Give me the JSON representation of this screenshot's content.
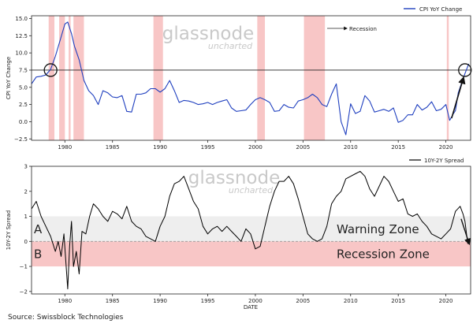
{
  "source": "Source: Swissblock Technologies",
  "chart_data": [
    {
      "type": "line",
      "title": "",
      "xlabel": "",
      "ylabel": "CPI YoY Change",
      "xlim": [
        1976.5,
        2022.6
      ],
      "ylim": [
        -2.7,
        15.4
      ],
      "xticks": [
        1980,
        1985,
        1990,
        1995,
        2000,
        2005,
        2010,
        2015,
        2020
      ],
      "yticks": [
        -2.5,
        0.0,
        2.5,
        5.0,
        7.5,
        10.0,
        12.5,
        15.0
      ],
      "ytick_labels": [
        "−2.5",
        "0.0",
        "2.5",
        "5.0",
        "7.5",
        "10.0",
        "12.5",
        "15.0"
      ],
      "legend_position": "top-right",
      "legend_label": "CPI YoY Change",
      "line_color": "#1f3fbf",
      "recession_color": "#f8c6c6",
      "recession_label": "Recession",
      "hline": 7.5,
      "watermark": {
        "main": "glassnode",
        "sub": "uncharted"
      },
      "recessions": [
        [
          1978.3,
          1978.9
        ],
        [
          1979.4,
          1980.0
        ],
        [
          1980.4,
          1980.6
        ],
        [
          1980.9,
          1982.0
        ],
        [
          1989.3,
          1990.3
        ],
        [
          2000.2,
          2001.0
        ],
        [
          2005.1,
          2007.3
        ],
        [
          2020.1,
          2020.3
        ]
      ],
      "series": [
        {
          "x": [
            1976.5,
            1977.0,
            1977.5,
            1978.0,
            1978.5,
            1979.0,
            1979.5,
            1980.0,
            1980.3,
            1980.7,
            1981.0,
            1981.5,
            1982.0,
            1982.5,
            1983.0,
            1983.5,
            1984.0,
            1984.5,
            1985.0,
            1985.5,
            1986.0,
            1986.5,
            1987.0,
            1987.5,
            1988.0,
            1988.5,
            1989.0,
            1989.5,
            1990.0,
            1990.5,
            1991.0,
            1991.5,
            1992.0,
            1992.5,
            1993.0,
            1993.5,
            1994.0,
            1994.5,
            1995.0,
            1995.5,
            1996.0,
            1996.5,
            1997.0,
            1997.5,
            1998.0,
            1998.5,
            1999.0,
            1999.5,
            2000.0,
            2000.5,
            2001.0,
            2001.5,
            2002.0,
            2002.5,
            2003.0,
            2003.5,
            2004.0,
            2004.5,
            2005.0,
            2005.5,
            2006.0,
            2006.5,
            2007.0,
            2007.5,
            2008.0,
            2008.5,
            2009.0,
            2009.5,
            2010.0,
            2010.5,
            2011.0,
            2011.5,
            2012.0,
            2012.5,
            2013.0,
            2013.5,
            2014.0,
            2014.5,
            2015.0,
            2015.5,
            2016.0,
            2016.5,
            2017.0,
            2017.5,
            2018.0,
            2018.5,
            2019.0,
            2019.5,
            2020.0,
            2020.4,
            2020.8,
            2021.0,
            2021.3,
            2021.6,
            2022.0,
            2022.4
          ],
          "y": [
            5.5,
            6.5,
            6.6,
            6.8,
            7.6,
            9.5,
            11.8,
            14.2,
            14.5,
            12.8,
            11.0,
            9.0,
            6.0,
            4.5,
            3.8,
            2.5,
            4.5,
            4.2,
            3.6,
            3.5,
            3.8,
            1.5,
            1.4,
            4.0,
            4.0,
            4.2,
            4.8,
            4.8,
            4.3,
            4.8,
            6.0,
            4.5,
            2.8,
            3.1,
            3.0,
            2.8,
            2.5,
            2.6,
            2.8,
            2.5,
            2.8,
            3.0,
            3.2,
            2.0,
            1.5,
            1.6,
            1.7,
            2.5,
            3.2,
            3.5,
            3.2,
            2.8,
            1.5,
            1.6,
            2.5,
            2.1,
            2.0,
            3.0,
            3.2,
            3.5,
            4.0,
            3.5,
            2.5,
            2.2,
            4.0,
            5.5,
            0.0,
            -1.9,
            2.6,
            1.2,
            1.5,
            3.8,
            3.0,
            1.4,
            1.6,
            1.8,
            1.5,
            2.0,
            -0.1,
            0.2,
            1.0,
            1.0,
            2.5,
            1.7,
            2.1,
            2.9,
            1.6,
            1.8,
            2.5,
            0.2,
            1.2,
            1.6,
            4.2,
            5.4,
            7.0,
            8.4
          ]
        }
      ]
    },
    {
      "type": "line",
      "title": "",
      "xlabel": "DATE",
      "ylabel": "10Y-2Y Spread",
      "xlim": [
        1976.5,
        2022.6
      ],
      "ylim": [
        -2.1,
        3.0
      ],
      "xticks": [
        1980,
        1985,
        1990,
        1995,
        2000,
        2005,
        2010,
        2015,
        2020
      ],
      "yticks": [
        -2,
        -1,
        0,
        1,
        2,
        3
      ],
      "ytick_labels": [
        "−2",
        "−1",
        "0",
        "1",
        "2",
        "3"
      ],
      "legend_position": "top-right",
      "legend_label": "10Y-2Y Spread",
      "line_color": "#000000",
      "watermark": {
        "main": "glassnode",
        "sub": "uncharted"
      },
      "zones": [
        {
          "label": "Warning Zone",
          "letter": "A",
          "from": 0,
          "to": 1,
          "color": "#eeeeee"
        },
        {
          "label": "Recession Zone",
          "letter": "B",
          "from": -1,
          "to": 0,
          "color": "#f8c6c6"
        }
      ],
      "series": [
        {
          "x": [
            1976.5,
            1977.0,
            1977.5,
            1978.0,
            1978.5,
            1979.0,
            1979.3,
            1979.6,
            1979.9,
            1980.1,
            1980.3,
            1980.5,
            1980.7,
            1980.9,
            1981.2,
            1981.5,
            1981.8,
            1982.2,
            1982.6,
            1983.0,
            1983.5,
            1984.0,
            1984.5,
            1985.0,
            1985.5,
            1986.0,
            1986.5,
            1987.0,
            1987.5,
            1988.0,
            1988.5,
            1989.0,
            1989.5,
            1990.0,
            1990.5,
            1991.0,
            1991.5,
            1992.0,
            1992.5,
            1993.0,
            1993.5,
            1994.0,
            1994.5,
            1995.0,
            1995.5,
            1996.0,
            1996.5,
            1997.0,
            1997.5,
            1998.0,
            1998.5,
            1999.0,
            1999.5,
            2000.0,
            2000.5,
            2001.0,
            2001.5,
            2002.0,
            2002.5,
            2003.0,
            2003.5,
            2004.0,
            2004.5,
            2005.0,
            2005.5,
            2006.0,
            2006.5,
            2007.0,
            2007.5,
            2008.0,
            2008.5,
            2009.0,
            2009.5,
            2010.0,
            2010.5,
            2011.0,
            2011.5,
            2012.0,
            2012.5,
            2013.0,
            2013.5,
            2014.0,
            2014.5,
            2015.0,
            2015.5,
            2016.0,
            2016.5,
            2017.0,
            2017.5,
            2018.0,
            2018.5,
            2019.0,
            2019.5,
            2020.0,
            2020.5,
            2021.0,
            2021.5,
            2021.8,
            2022.0,
            2022.3
          ],
          "y": [
            1.3,
            1.6,
            1.0,
            0.6,
            0.2,
            -0.4,
            0.0,
            -0.6,
            0.3,
            -0.8,
            -1.9,
            -0.2,
            0.8,
            -1.0,
            -0.4,
            -1.3,
            0.4,
            0.3,
            1.0,
            1.5,
            1.3,
            1.0,
            0.8,
            1.2,
            1.1,
            0.9,
            1.4,
            0.8,
            0.6,
            0.5,
            0.2,
            0.1,
            0.0,
            0.6,
            1.0,
            1.8,
            2.3,
            2.4,
            2.6,
            2.1,
            1.6,
            1.3,
            0.6,
            0.3,
            0.5,
            0.6,
            0.4,
            0.6,
            0.4,
            0.2,
            0.0,
            0.5,
            0.3,
            -0.3,
            -0.2,
            0.6,
            1.4,
            2.0,
            2.4,
            2.4,
            2.6,
            2.3,
            1.7,
            1.0,
            0.3,
            0.1,
            0.0,
            0.1,
            0.6,
            1.5,
            1.8,
            2.0,
            2.5,
            2.6,
            2.7,
            2.8,
            2.6,
            2.1,
            1.8,
            2.2,
            2.6,
            2.4,
            2.0,
            1.6,
            1.7,
            1.1,
            1.0,
            1.1,
            0.8,
            0.6,
            0.3,
            0.2,
            0.1,
            0.3,
            0.5,
            1.2,
            1.4,
            1.1,
            0.8,
            -0.1
          ]
        }
      ]
    }
  ]
}
